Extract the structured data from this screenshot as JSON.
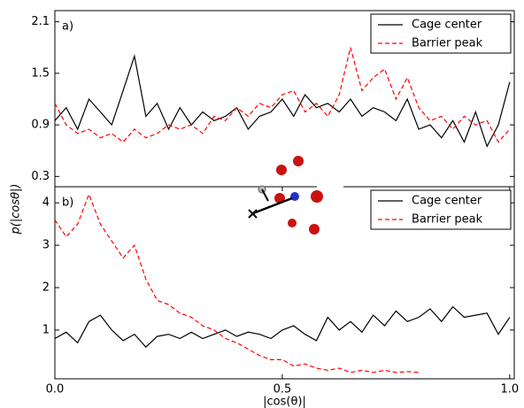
{
  "ylabel": "p(|cosθ|)",
  "chart_data": [
    {
      "type": "line",
      "panel_label": "a)",
      "x": [
        0,
        0.025,
        0.05,
        0.075,
        0.1,
        0.125,
        0.15,
        0.175,
        0.2,
        0.225,
        0.25,
        0.275,
        0.3,
        0.325,
        0.35,
        0.375,
        0.4,
        0.425,
        0.45,
        0.475,
        0.5,
        0.525,
        0.55,
        0.575,
        0.6,
        0.625,
        0.65,
        0.675,
        0.7,
        0.725,
        0.75,
        0.775,
        0.8,
        0.825,
        0.85,
        0.875,
        0.9,
        0.925,
        0.95,
        0.975,
        1.0
      ],
      "series": [
        {
          "name": "Cage center",
          "color": "#000000",
          "dash": false,
          "values": [
            0.95,
            1.1,
            0.85,
            1.2,
            1.05,
            0.9,
            1.3,
            1.7,
            1.0,
            1.15,
            0.85,
            1.1,
            0.9,
            1.05,
            0.95,
            1.0,
            1.1,
            0.85,
            1.0,
            1.05,
            1.2,
            1.0,
            1.25,
            1.1,
            1.15,
            1.05,
            1.2,
            1.0,
            1.1,
            1.05,
            0.95,
            1.2,
            0.85,
            0.9,
            0.75,
            0.95,
            0.7,
            1.05,
            0.65,
            0.9,
            1.4
          ]
        },
        {
          "name": "Barrier peak",
          "color": "#ff0000",
          "dash": true,
          "values": [
            1.15,
            0.9,
            0.8,
            0.85,
            0.75,
            0.8,
            0.7,
            0.85,
            0.75,
            0.8,
            0.9,
            0.85,
            0.9,
            0.8,
            1.0,
            0.95,
            1.1,
            1.0,
            1.15,
            1.1,
            1.25,
            1.3,
            1.05,
            1.15,
            1.0,
            1.25,
            1.8,
            1.3,
            1.45,
            1.55,
            1.2,
            1.45,
            1.1,
            0.95,
            1.0,
            0.85,
            1.0,
            0.9,
            0.95,
            0.7,
            0.85
          ]
        }
      ],
      "xlim": [
        0,
        1.01
      ],
      "ylim": [
        0.18,
        2.23
      ],
      "yticks": [
        0.3,
        0.9,
        1.5,
        2.1
      ],
      "legend": "upper right"
    },
    {
      "type": "line",
      "panel_label": "b)",
      "xlabel": "|cos(θ)|",
      "x": [
        0,
        0.025,
        0.05,
        0.075,
        0.1,
        0.125,
        0.15,
        0.175,
        0.2,
        0.225,
        0.25,
        0.275,
        0.3,
        0.325,
        0.35,
        0.375,
        0.4,
        0.425,
        0.45,
        0.475,
        0.5,
        0.525,
        0.55,
        0.575,
        0.6,
        0.625,
        0.65,
        0.675,
        0.7,
        0.725,
        0.75,
        0.775,
        0.8,
        0.825,
        0.85,
        0.875,
        0.9,
        0.925,
        0.95,
        0.975,
        1.0
      ],
      "series": [
        {
          "name": "Cage center",
          "color": "#000000",
          "dash": false,
          "values": [
            0.8,
            0.95,
            0.7,
            1.2,
            1.35,
            1.0,
            0.75,
            0.9,
            0.6,
            0.85,
            0.9,
            0.8,
            0.95,
            0.8,
            0.9,
            1.0,
            0.85,
            0.95,
            0.9,
            0.8,
            1.0,
            1.1,
            0.9,
            0.75,
            1.3,
            1.0,
            1.2,
            0.95,
            1.35,
            1.1,
            1.45,
            1.2,
            1.3,
            1.5,
            1.2,
            1.55,
            1.3,
            1.35,
            1.4,
            0.9,
            1.3
          ]
        },
        {
          "name": "Barrier peak",
          "color": "#ff0000",
          "dash": true,
          "values": [
            3.6,
            3.2,
            3.5,
            4.2,
            3.5,
            3.1,
            2.7,
            3.0,
            2.2,
            1.7,
            1.6,
            1.4,
            1.3,
            1.1,
            1.0,
            0.8,
            0.7,
            0.55,
            0.4,
            0.3,
            0.3,
            0.15,
            0.2,
            0.1,
            0.05,
            0.1,
            0.0,
            0.05,
            0.0,
            0.05,
            0.0,
            0.02,
            0.0,
            null,
            null,
            null,
            null,
            null,
            null,
            null,
            null
          ]
        }
      ],
      "xlim": [
        0,
        1.01
      ],
      "ylim": [
        -0.15,
        4.38
      ],
      "yticks": [
        1,
        2,
        3,
        4
      ],
      "xticks": [
        {
          "value": 0,
          "label": "0.0"
        },
        {
          "value": 0.5,
          "label": "0.5"
        },
        {
          "value": 1,
          "label": "1.0"
        }
      ],
      "legend": "upper right"
    }
  ]
}
